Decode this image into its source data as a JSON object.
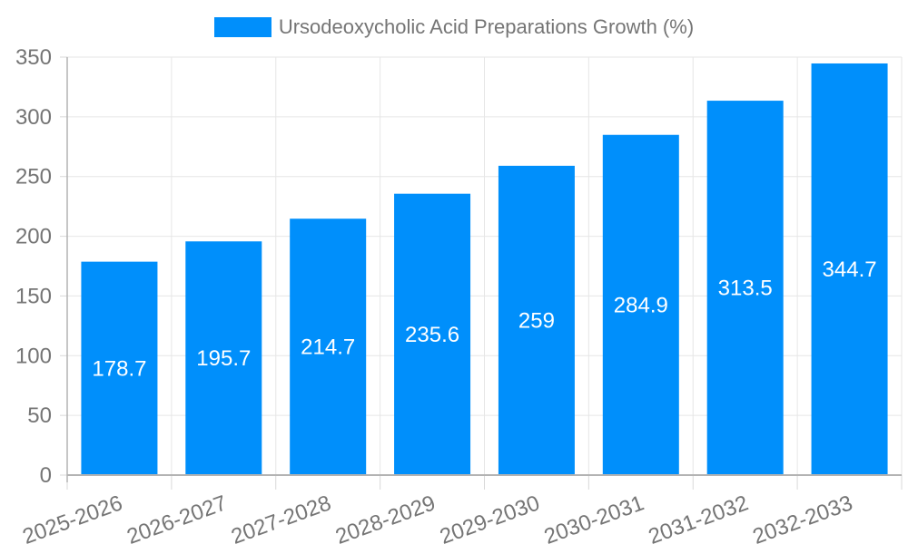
{
  "chart_data": {
    "type": "bar",
    "legend": {
      "position": "top",
      "label": "Ursodeoxycholic Acid Preparations Growth (%)"
    },
    "categories": [
      "2025-2026",
      "2026-2027",
      "2027-2028",
      "2028-2029",
      "2029-2030",
      "2030-2031",
      "2031-2032",
      "2032-2033"
    ],
    "values": [
      178.7,
      195.7,
      214.7,
      235.6,
      259,
      284.9,
      313.5,
      344.7
    ],
    "value_labels": [
      "178.7",
      "195.7",
      "214.7",
      "235.6",
      "259",
      "284.9",
      "313.5",
      "344.7"
    ],
    "xlabel": "",
    "ylabel": "",
    "ylim": [
      0,
      350
    ],
    "y_ticks": [
      0,
      50,
      100,
      150,
      200,
      250,
      300,
      350
    ],
    "grid": true,
    "x_label_rotation_deg": -20,
    "colors": {
      "bar": "#008FFB",
      "value_label": "#ffffff",
      "axis_text": "#757575",
      "gridline": "#e6e6e6",
      "axis_line": "#b3b3b3",
      "tick": "#d9d9d9",
      "background": "#ffffff"
    }
  }
}
